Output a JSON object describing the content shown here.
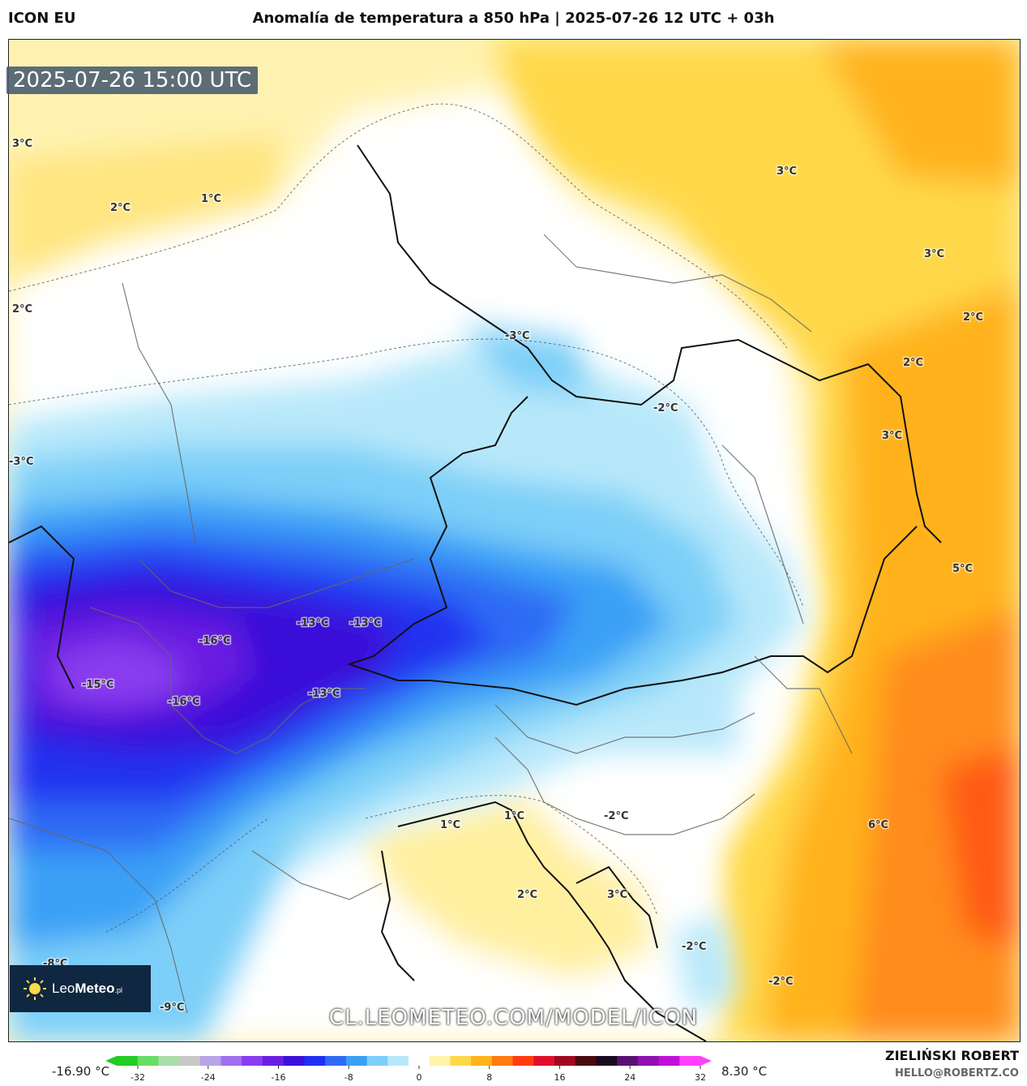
{
  "header": {
    "model": "ICON EU",
    "title": "Anomalía de temperatura a 850 hPa | 2025-07-26 12 UTC + 03h"
  },
  "overlay": {
    "valid_time": "2025-07-26 15:00 UTC",
    "logo_word_light": "Leo",
    "logo_word_bold": "Meteo",
    "logo_suffix": ".pl",
    "watermark": "CL.LEOMETEO.COM/MODEL/ICON"
  },
  "labels": [
    {
      "text": "3°C"
    },
    {
      "text": "2°C"
    },
    {
      "text": "1°C"
    },
    {
      "text": "2°C"
    },
    {
      "text": "3°C"
    },
    {
      "text": "3°C"
    },
    {
      "text": "2°C"
    },
    {
      "text": "2°C"
    },
    {
      "text": "-3°C"
    },
    {
      "text": "-2°C"
    },
    {
      "text": "3°C"
    },
    {
      "text": "-3°C"
    },
    {
      "text": "5°C"
    },
    {
      "text": "-13°C"
    },
    {
      "text": "-13°C"
    },
    {
      "text": "-16°C"
    },
    {
      "text": "-15°C"
    },
    {
      "text": "-16°C"
    },
    {
      "text": "-13°C"
    },
    {
      "text": "1°C"
    },
    {
      "text": "1°C"
    },
    {
      "text": "-2°C"
    },
    {
      "text": "6°C"
    },
    {
      "text": "2°C"
    },
    {
      "text": "3°C"
    },
    {
      "text": "-2°C"
    },
    {
      "text": "-2°C"
    },
    {
      "text": "-8°C"
    },
    {
      "text": "-9°C"
    }
  ],
  "legend": {
    "min_label": "-16.90 °C",
    "max_label": "8.30 °C",
    "ticks": [
      "-32",
      "-24",
      "-16",
      "-8",
      "0",
      "8",
      "16",
      "24",
      "32"
    ],
    "colors": [
      "#22cc22",
      "#66dd66",
      "#aaddaa",
      "#c8c8c8",
      "#b9a4e8",
      "#a070f0",
      "#8a3cf0",
      "#6a1ee0",
      "#3b10d8",
      "#2030f0",
      "#2f6af4",
      "#3aa0f6",
      "#7ccff8",
      "#b7e8fa",
      "#ffffff",
      "#fff3a8",
      "#ffd84a",
      "#ffb21a",
      "#ff7a10",
      "#ff3c10",
      "#e0102a",
      "#a00820",
      "#4a0a10",
      "#1a0a20",
      "#5a1070",
      "#9010b0",
      "#c010d8",
      "#ff40ff"
    ]
  },
  "footer": {
    "author": "ZIELIŃSKI ROBERT",
    "contact": "HELLO@ROBERTZ.CO"
  }
}
